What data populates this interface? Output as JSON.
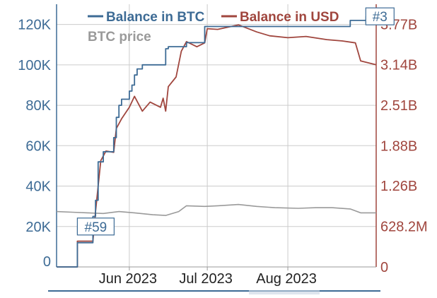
{
  "chart_data": {
    "type": "line",
    "title": "",
    "legend": {
      "placement": "top-right",
      "items": [
        {
          "label": "Balance in BTC",
          "color": "#3d6b95"
        },
        {
          "label": "Balance in USD",
          "color": "#a0463e"
        },
        {
          "label": "BTC price",
          "color": "#9a9a9a"
        }
      ]
    },
    "x_axis": {
      "type": "date",
      "range": [
        "2023-05-04",
        "2023-09-04"
      ],
      "tick_labels": [
        "Jun 2023",
        "Jul 2023",
        "Aug 2023"
      ],
      "tick_dates": [
        "2023-06-01",
        "2023-07-01",
        "2023-08-01"
      ]
    },
    "y_axis_left": {
      "label": "",
      "range": [
        0,
        130000
      ],
      "ticks": [
        0,
        20000,
        40000,
        60000,
        80000,
        100000,
        120000
      ],
      "tick_labels": [
        "0",
        "20K",
        "40K",
        "60K",
        "80K",
        "100K",
        "120K"
      ],
      "color": "#3d6b95"
    },
    "y_axis_right": {
      "label": "",
      "range": [
        0,
        4080000000
      ],
      "ticks": [
        0,
        628200000,
        1260000000,
        1880000000,
        2510000000,
        3140000000,
        3770000000
      ],
      "tick_labels": [
        "0",
        "628.2M",
        "1.26B",
        "1.88B",
        "2.51B",
        "3.14B",
        "3.77B"
      ],
      "color": "#a0463e"
    },
    "grid": true,
    "annotations": [
      {
        "label": "#59",
        "x": "2023-05-12",
        "y": 20000,
        "axis": "left"
      },
      {
        "label": "#3",
        "x": "2023-08-31",
        "y": 124000,
        "axis": "left"
      }
    ],
    "series": [
      {
        "name": "Balance in BTC",
        "axis": "left",
        "color": "#3d6b95",
        "step": true,
        "points": [
          [
            "2023-05-04",
            0
          ],
          [
            "2023-05-12",
            0
          ],
          [
            "2023-05-12",
            12000
          ],
          [
            "2023-05-18",
            12000
          ],
          [
            "2023-05-18",
            25000
          ],
          [
            "2023-05-19",
            33000
          ],
          [
            "2023-05-20",
            52000
          ],
          [
            "2023-05-22",
            57000
          ],
          [
            "2023-05-26",
            57000
          ],
          [
            "2023-05-26",
            64000
          ],
          [
            "2023-05-27",
            74000
          ],
          [
            "2023-05-28",
            80000
          ],
          [
            "2023-05-29",
            83000
          ],
          [
            "2023-06-01",
            87000
          ],
          [
            "2023-06-02",
            90000
          ],
          [
            "2023-06-03",
            95000
          ],
          [
            "2023-06-04",
            98000
          ],
          [
            "2023-06-06",
            98000
          ],
          [
            "2023-06-06",
            100000
          ],
          [
            "2023-06-15",
            100000
          ],
          [
            "2023-06-15",
            108000
          ],
          [
            "2023-06-16",
            109000
          ],
          [
            "2023-06-23",
            109000
          ],
          [
            "2023-06-23",
            111000
          ],
          [
            "2023-06-30",
            111000
          ],
          [
            "2023-06-30",
            119000
          ],
          [
            "2023-08-25",
            119000
          ],
          [
            "2023-08-25",
            122000
          ],
          [
            "2023-09-04",
            122000
          ]
        ]
      },
      {
        "name": "Balance in USD",
        "axis": "right",
        "color": "#a0463e",
        "step": false,
        "points": [
          [
            "2023-05-04",
            0
          ],
          [
            "2023-05-12",
            0
          ],
          [
            "2023-05-12",
            400000000
          ],
          [
            "2023-05-18",
            400000000
          ],
          [
            "2023-05-19",
            860000000
          ],
          [
            "2023-05-21",
            1650000000
          ],
          [
            "2023-05-23",
            1800000000
          ],
          [
            "2023-05-26",
            1780000000
          ],
          [
            "2023-05-27",
            2150000000
          ],
          [
            "2023-05-29",
            2300000000
          ],
          [
            "2023-06-01",
            2480000000
          ],
          [
            "2023-06-03",
            2650000000
          ],
          [
            "2023-06-06",
            2420000000
          ],
          [
            "2023-06-09",
            2560000000
          ],
          [
            "2023-06-13",
            2480000000
          ],
          [
            "2023-06-14",
            2620000000
          ],
          [
            "2023-06-15",
            2420000000
          ],
          [
            "2023-06-16",
            2800000000
          ],
          [
            "2023-06-19",
            2950000000
          ],
          [
            "2023-06-21",
            3350000000
          ],
          [
            "2023-06-23",
            3500000000
          ],
          [
            "2023-06-27",
            3420000000
          ],
          [
            "2023-06-30",
            3480000000
          ],
          [
            "2023-07-01",
            3700000000
          ],
          [
            "2023-07-05",
            3690000000
          ],
          [
            "2023-07-13",
            3760000000
          ],
          [
            "2023-07-20",
            3650000000
          ],
          [
            "2023-07-25",
            3590000000
          ],
          [
            "2023-08-01",
            3560000000
          ],
          [
            "2023-08-08",
            3580000000
          ],
          [
            "2023-08-16",
            3530000000
          ],
          [
            "2023-08-22",
            3510000000
          ],
          [
            "2023-08-27",
            3480000000
          ],
          [
            "2023-08-29",
            3200000000
          ],
          [
            "2023-09-04",
            3140000000
          ]
        ]
      },
      {
        "name": "BTC price",
        "axis": "right",
        "color": "#9a9a9a",
        "step": false,
        "points": [
          [
            "2023-05-04",
            860000000
          ],
          [
            "2023-05-10",
            850000000
          ],
          [
            "2023-05-16",
            840000000
          ],
          [
            "2023-05-22",
            830000000
          ],
          [
            "2023-05-28",
            860000000
          ],
          [
            "2023-06-03",
            840000000
          ],
          [
            "2023-06-10",
            810000000
          ],
          [
            "2023-06-15",
            800000000
          ],
          [
            "2023-06-20",
            860000000
          ],
          [
            "2023-06-23",
            950000000
          ],
          [
            "2023-06-30",
            940000000
          ],
          [
            "2023-07-05",
            950000000
          ],
          [
            "2023-07-13",
            970000000
          ],
          [
            "2023-07-20",
            940000000
          ],
          [
            "2023-07-27",
            920000000
          ],
          [
            "2023-08-05",
            910000000
          ],
          [
            "2023-08-12",
            920000000
          ],
          [
            "2023-08-18",
            920000000
          ],
          [
            "2023-08-25",
            900000000
          ],
          [
            "2023-08-29",
            840000000
          ],
          [
            "2023-09-04",
            840000000
          ]
        ]
      }
    ]
  }
}
